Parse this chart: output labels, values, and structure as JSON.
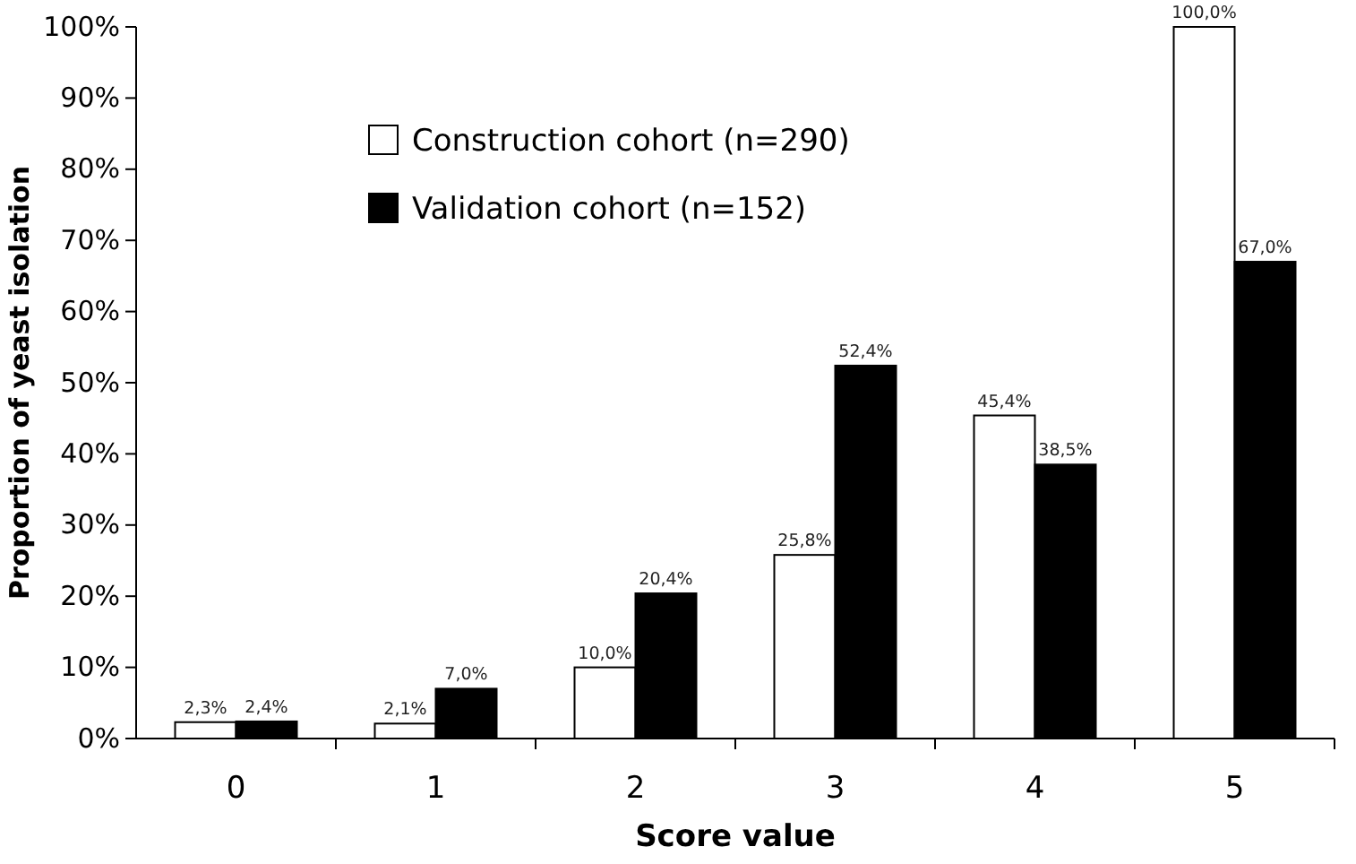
{
  "chart_data": {
    "type": "bar",
    "xlabel": "Score value",
    "ylabel": "Proportion of yeast isolation",
    "categories": [
      "0",
      "1",
      "2",
      "3",
      "4",
      "5"
    ],
    "series": [
      {
        "name": "Construction cohort (n=290)",
        "color": "#ffffff",
        "values": [
          2.3,
          2.1,
          10.0,
          25.8,
          45.4,
          100.0
        ],
        "value_labels": [
          "2,3%",
          "2,1%",
          "10,0%",
          "25,8%",
          "45,4%",
          "100,0%"
        ]
      },
      {
        "name": "Validation cohort (n=152)",
        "color": "#000000",
        "values": [
          2.4,
          7.0,
          20.4,
          52.4,
          38.5,
          67.0
        ],
        "value_labels": [
          "2,4%",
          "7,0%",
          "20,4%",
          "52,4%",
          "38,5%",
          "67,0%"
        ]
      }
    ],
    "ylim": [
      0,
      100
    ],
    "yticks": [
      {
        "value": 0,
        "label": "0%"
      },
      {
        "value": 10,
        "label": "10%"
      },
      {
        "value": 20,
        "label": "20%"
      },
      {
        "value": 30,
        "label": "30%"
      },
      {
        "value": 40,
        "label": "40%"
      },
      {
        "value": 50,
        "label": "50%"
      },
      {
        "value": 60,
        "label": "60%"
      },
      {
        "value": 70,
        "label": "70%"
      },
      {
        "value": 80,
        "label": "80%"
      },
      {
        "value": 90,
        "label": "90%"
      },
      {
        "value": 100,
        "label": "100%"
      }
    ],
    "grid": false,
    "legend": "top left"
  }
}
